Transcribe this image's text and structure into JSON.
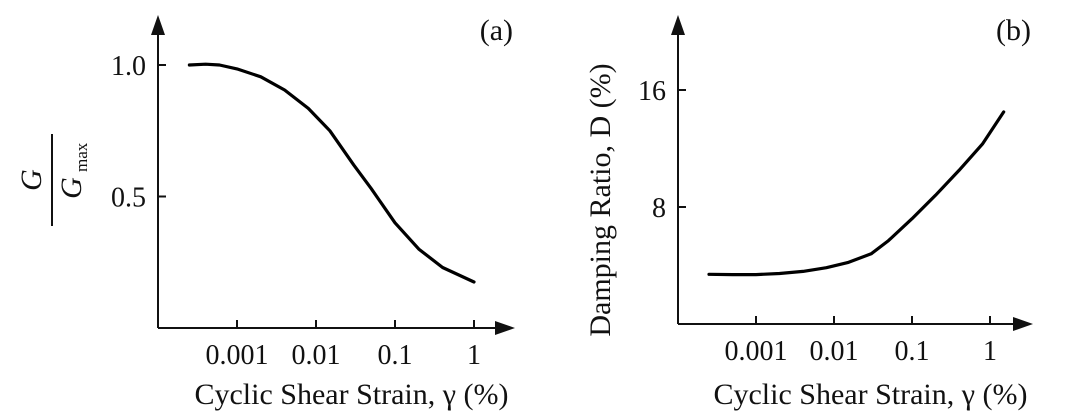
{
  "chart_data": [
    {
      "panel_label": "(a)",
      "type": "line",
      "x_scale": "log",
      "xlabel": "Cyclic Shear Strain, γ (%)",
      "ylabel_numerator": "G",
      "ylabel_denominator": "G",
      "ylabel_denominator_subscript": "max",
      "x_ticks": [
        {
          "value": 0.001,
          "label": "0.001"
        },
        {
          "value": 0.01,
          "label": "0.01"
        },
        {
          "value": 0.1,
          "label": "0.1"
        },
        {
          "value": 1,
          "label": "1"
        }
      ],
      "y_ticks": [
        {
          "value": 1.0,
          "label": "1.0"
        },
        {
          "value": 0.5,
          "label": "0.5"
        }
      ],
      "xlim": [
        5e-05,
        6
      ],
      "ylim": [
        0,
        1.12
      ],
      "series": [
        {
          "x": [
            0.00025,
            0.0004,
            0.0006,
            0.001,
            0.002,
            0.004,
            0.008,
            0.015,
            0.03,
            0.05,
            0.1,
            0.2,
            0.4,
            1.0
          ],
          "y": [
            1.0,
            1.003,
            1.0,
            0.985,
            0.955,
            0.905,
            0.835,
            0.75,
            0.62,
            0.53,
            0.4,
            0.3,
            0.23,
            0.175
          ],
          "color": "#000000"
        }
      ]
    },
    {
      "panel_label": "(b)",
      "type": "line",
      "x_scale": "log",
      "xlabel": "Cyclic Shear Strain, γ (%)",
      "ylabel": "Damping Ratio, D (%)",
      "x_ticks": [
        {
          "value": 0.001,
          "label": "0.001"
        },
        {
          "value": 0.01,
          "label": "0.01"
        },
        {
          "value": 0.1,
          "label": "0.1"
        },
        {
          "value": 1,
          "label": "1"
        }
      ],
      "y_ticks": [
        {
          "value": 16,
          "label": "16"
        },
        {
          "value": 8,
          "label": "8"
        }
      ],
      "xlim": [
        5e-05,
        6
      ],
      "ylim": [
        0,
        17.8
      ],
      "series": [
        {
          "x": [
            0.00025,
            0.0005,
            0.001,
            0.002,
            0.004,
            0.008,
            0.015,
            0.03,
            0.05,
            0.1,
            0.2,
            0.4,
            0.8,
            1.5
          ],
          "y": [
            3.4,
            3.38,
            3.38,
            3.45,
            3.6,
            3.85,
            4.2,
            4.8,
            5.7,
            7.2,
            8.8,
            10.5,
            12.3,
            14.5
          ],
          "color": "#000000"
        }
      ]
    }
  ]
}
